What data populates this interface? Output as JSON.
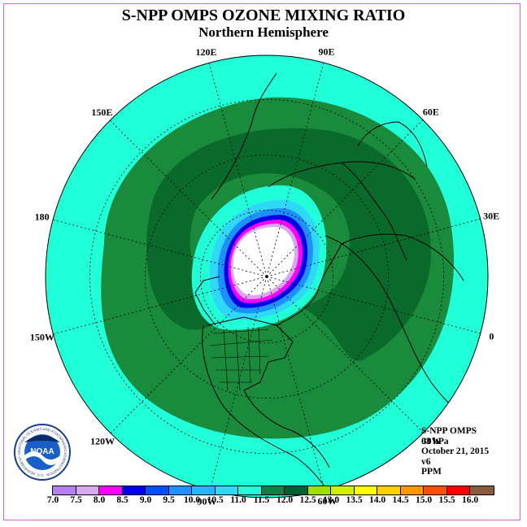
{
  "title": "S-NPP OMPS OZONE MIXING RATIO",
  "subtitle": "Northern Hemisphere",
  "longitude_labels": [
    "90E",
    "60E",
    "30E",
    "0",
    "30W",
    "60W",
    "90W",
    "120W",
    "150W",
    "180",
    "150E",
    "120E"
  ],
  "info": {
    "line1": "S-NPP OMPS",
    "line2": "03 hPa",
    "line3": "October 21, 2015",
    "line4": "v6",
    "line5": "PPM"
  },
  "logo": {
    "text": "NOAA",
    "ring_text": "NATIONAL OCEANIC AND ATMOSPHERIC ADMINISTRATION · U.S. DEPARTMENT OF COMMERCE"
  },
  "colorbar": {
    "ticks": [
      "7.0",
      "7.5",
      "8.0",
      "8.5",
      "9.0",
      "9.5",
      "10.0",
      "10.5",
      "11.0",
      "11.5",
      "12.0",
      "12.5",
      "13.0",
      "13.5",
      "14.0",
      "14.5",
      "15.0",
      "15.5",
      "16.0"
    ],
    "colors": [
      "#b480f0",
      "#d8a8f0",
      "#ff00ff",
      "#0000e8",
      "#0050ff",
      "#1e90ff",
      "#28b4ff",
      "#30d8f8",
      "#20ffd8",
      "#108040",
      "#006030",
      "#a0e000",
      "#d0f000",
      "#ffff00",
      "#ffd000",
      "#ff9800",
      "#ff5000",
      "#ff0000",
      "#8b5a3c"
    ]
  },
  "map_colors": {
    "outer": "#20ffd8",
    "mid": "#1a8a3c",
    "inner": "#0a6a2c",
    "hole": "#ffffff"
  }
}
